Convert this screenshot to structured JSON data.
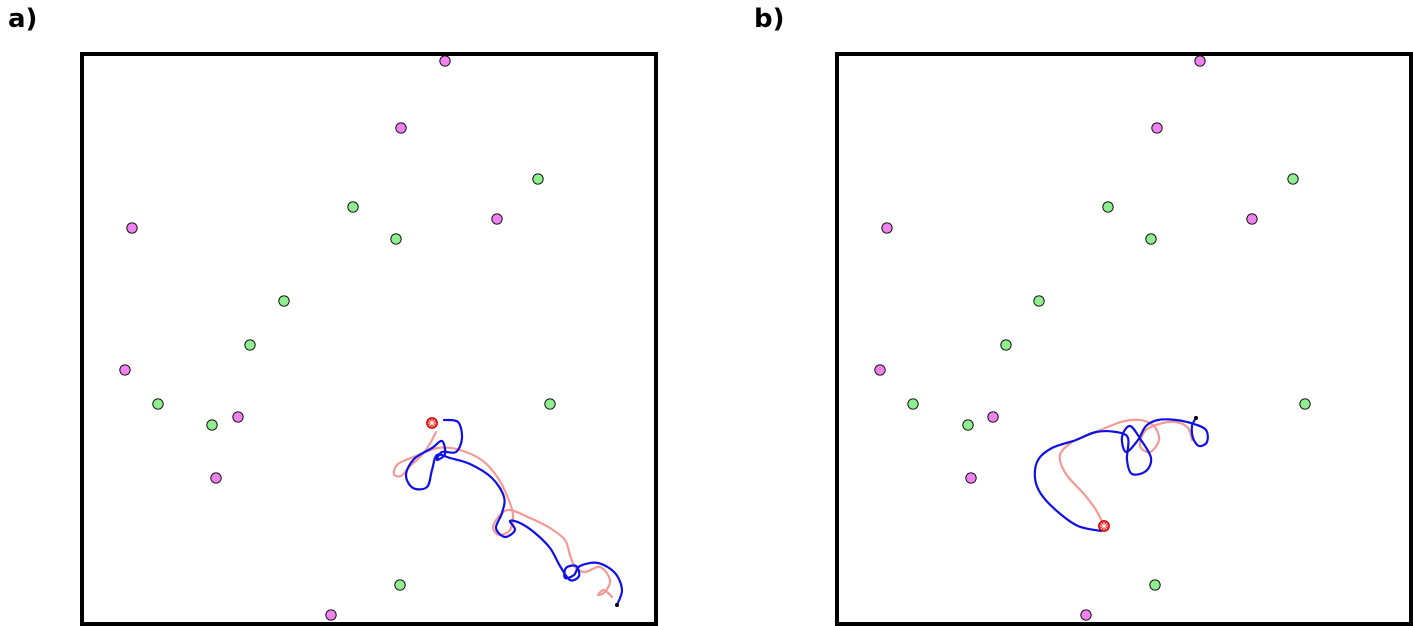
{
  "panels": [
    {
      "label": "a)",
      "obstacles_pink": [
        [
          445,
          61
        ],
        [
          401,
          128
        ],
        [
          132,
          228
        ],
        [
          497,
          219
        ],
        [
          125,
          370
        ],
        [
          238,
          417
        ],
        [
          216,
          478
        ],
        [
          331,
          615
        ]
      ],
      "obstacles_green": [
        [
          538,
          179
        ],
        [
          353,
          207
        ],
        [
          396,
          239
        ],
        [
          284,
          301
        ],
        [
          250,
          345
        ],
        [
          158,
          404
        ],
        [
          212,
          425
        ],
        [
          550,
          404
        ],
        [
          400,
          585
        ]
      ],
      "start_marker": [
        432,
        423
      ],
      "end_marker": [
        617,
        605
      ],
      "path_blue": [
        [
          617,
          605
        ],
        [
          622,
          590
        ],
        [
          615,
          573
        ],
        [
          598,
          563
        ],
        [
          580,
          566
        ],
        [
          574,
          575
        ],
        [
          565,
          578
        ],
        [
          566,
          568
        ],
        [
          576,
          566
        ],
        [
          579,
          576
        ],
        [
          570,
          580
        ],
        [
          560,
          566
        ],
        [
          550,
          548
        ],
        [
          535,
          533
        ],
        [
          520,
          523
        ],
        [
          510,
          521
        ],
        [
          515,
          530
        ],
        [
          505,
          537
        ],
        [
          496,
          528
        ],
        [
          502,
          513
        ],
        [
          504,
          497
        ],
        [
          492,
          478
        ],
        [
          470,
          464
        ],
        [
          450,
          458
        ],
        [
          437,
          455
        ],
        [
          432,
          470
        ],
        [
          427,
          487
        ],
        [
          413,
          488
        ],
        [
          406,
          475
        ],
        [
          414,
          459
        ],
        [
          432,
          448
        ],
        [
          442,
          441
        ],
        [
          445,
          454
        ],
        [
          437,
          460
        ],
        [
          442,
          452
        ],
        [
          456,
          452
        ],
        [
          462,
          438
        ],
        [
          458,
          422
        ],
        [
          444,
          420
        ]
      ],
      "path_pink": [
        [
          612,
          597
        ],
        [
          604,
          590
        ],
        [
          598,
          595
        ],
        [
          605,
          592
        ],
        [
          610,
          580
        ],
        [
          600,
          567
        ],
        [
          585,
          572
        ],
        [
          575,
          567
        ],
        [
          570,
          555
        ],
        [
          565,
          540
        ],
        [
          550,
          528
        ],
        [
          530,
          518
        ],
        [
          510,
          510
        ],
        [
          500,
          515
        ],
        [
          493,
          527
        ],
        [
          499,
          535
        ],
        [
          510,
          530
        ],
        [
          513,
          515
        ],
        [
          508,
          498
        ],
        [
          498,
          478
        ],
        [
          483,
          461
        ],
        [
          460,
          450
        ],
        [
          438,
          448
        ],
        [
          416,
          456
        ],
        [
          398,
          464
        ],
        [
          394,
          474
        ],
        [
          401,
          476
        ],
        [
          410,
          466
        ],
        [
          418,
          459
        ],
        [
          426,
          450
        ],
        [
          432,
          440
        ],
        [
          436,
          432
        ]
      ]
    },
    {
      "label": "b)",
      "obstacles_pink": [
        [
          454,
          61
        ],
        [
          411,
          128
        ],
        [
          141,
          228
        ],
        [
          506,
          219
        ],
        [
          134,
          370
        ],
        [
          247,
          417
        ],
        [
          225,
          478
        ],
        [
          340,
          615
        ]
      ],
      "obstacles_green": [
        [
          547,
          179
        ],
        [
          362,
          207
        ],
        [
          405,
          239
        ],
        [
          293,
          301
        ],
        [
          260,
          345
        ],
        [
          167,
          404
        ],
        [
          222,
          425
        ],
        [
          559,
          404
        ],
        [
          409,
          585
        ]
      ],
      "start_marker": [
        358,
        526
      ],
      "end_marker": [
        450,
        418
      ],
      "path_blue": [
        [
          450,
          418
        ],
        [
          446,
          426
        ],
        [
          447,
          438
        ],
        [
          453,
          446
        ],
        [
          461,
          442
        ],
        [
          460,
          430
        ],
        [
          448,
          424
        ],
        [
          430,
          420
        ],
        [
          412,
          420
        ],
        [
          400,
          426
        ],
        [
          392,
          440
        ],
        [
          380,
          452
        ],
        [
          376,
          437
        ],
        [
          384,
          426
        ],
        [
          395,
          440
        ],
        [
          405,
          458
        ],
        [
          400,
          471
        ],
        [
          386,
          474
        ],
        [
          381,
          460
        ],
        [
          382,
          438
        ],
        [
          370,
          432
        ],
        [
          350,
          432
        ],
        [
          330,
          440
        ],
        [
          306,
          448
        ],
        [
          292,
          460
        ],
        [
          289,
          478
        ],
        [
          295,
          494
        ],
        [
          312,
          512
        ],
        [
          332,
          526
        ],
        [
          355,
          531
        ]
      ],
      "path_pink": [
        [
          358,
          526
        ],
        [
          350,
          510
        ],
        [
          338,
          494
        ],
        [
          320,
          474
        ],
        [
          314,
          455
        ],
        [
          328,
          441
        ],
        [
          350,
          432
        ],
        [
          375,
          422
        ],
        [
          394,
          420
        ],
        [
          408,
          426
        ],
        [
          413,
          440
        ],
        [
          404,
          452
        ],
        [
          394,
          446
        ],
        [
          399,
          431
        ],
        [
          413,
          424
        ],
        [
          430,
          422
        ],
        [
          442,
          428
        ],
        [
          446,
          440
        ]
      ]
    }
  ],
  "colors": {
    "pink_fill": "#ee82ee",
    "green_fill": "#90ee90",
    "blue_path": "#1010e6",
    "pink_path": "#f49a94",
    "start_red": "#ff3030",
    "frame": "#000000"
  }
}
